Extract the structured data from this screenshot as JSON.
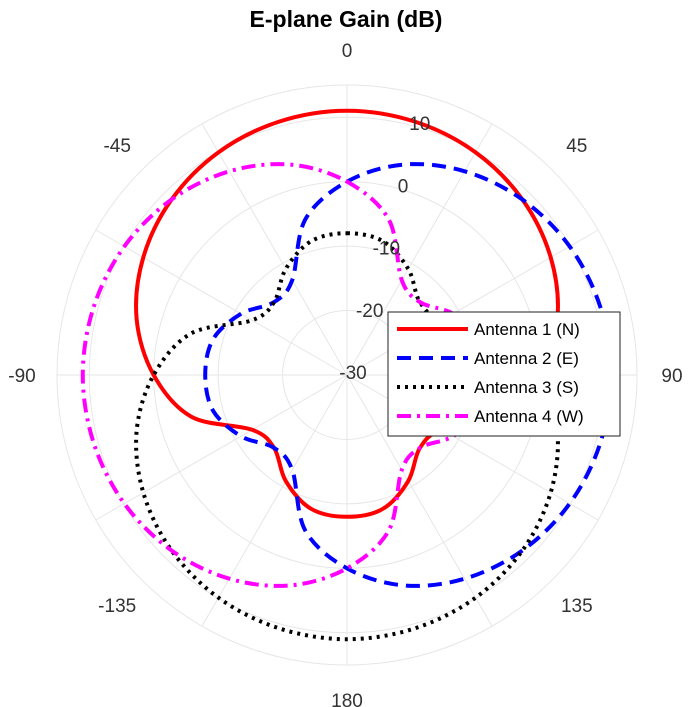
{
  "chart_data": {
    "type": "polar-line",
    "title": "E-plane Gain (dB)",
    "angle_unit": "deg",
    "angle_zero": "top",
    "angle_direction": "clockwise",
    "angle_ticks": [
      0,
      45,
      90,
      135,
      180,
      -135,
      -90,
      -45
    ],
    "r_ticks": [
      -30,
      -20,
      -10,
      0,
      10
    ],
    "rlim": [
      -30,
      15
    ],
    "grid": true,
    "legend": "right",
    "series": [
      {
        "name": "Antenna 1 (N)",
        "color": "#ff0000",
        "style": "solid",
        "theta": [
          0,
          15,
          30,
          45,
          60,
          75,
          90,
          105,
          120,
          135,
          150,
          165,
          180,
          195,
          210,
          225,
          240,
          255,
          270,
          285,
          300,
          315,
          330,
          345
        ],
        "gain": [
          11,
          10.7,
          9.9,
          8.5,
          6.5,
          3.8,
          0.0,
          -5.0,
          -13.0,
          -14.0,
          -11.0,
          -8.5,
          -8.0,
          -8.5,
          -11.0,
          -14.0,
          -13.0,
          -5.0,
          0.0,
          3.8,
          6.5,
          8.5,
          9.9,
          10.7
        ]
      },
      {
        "name": "Antenna 2 (E)",
        "color": "#0000ff",
        "style": "dashed",
        "theta": [
          0,
          15,
          30,
          45,
          60,
          75,
          90,
          105,
          120,
          135,
          150,
          165,
          180,
          195,
          210,
          225,
          240,
          255,
          270,
          285,
          300,
          315,
          330,
          345
        ],
        "gain": [
          0.0,
          3.8,
          6.5,
          8.5,
          9.9,
          10.7,
          11,
          10.7,
          9.9,
          8.5,
          6.5,
          3.8,
          0.0,
          -5.0,
          -13.0,
          -14.0,
          -11.0,
          -8.5,
          -8.0,
          -8.5,
          -11.0,
          -14.0,
          -13.0,
          -5.0
        ]
      },
      {
        "name": "Antenna 3 (S)",
        "color": "#000000",
        "style": "dotted",
        "theta": [
          0,
          15,
          30,
          45,
          60,
          75,
          90,
          105,
          120,
          135,
          150,
          165,
          180,
          195,
          210,
          225,
          240,
          255,
          270,
          285,
          300,
          315,
          330,
          345
        ],
        "gain": [
          -8.0,
          -8.5,
          -11.0,
          -14.0,
          -13.0,
          -5.0,
          0.0,
          3.8,
          6.5,
          8.5,
          9.9,
          10.7,
          11,
          10.7,
          9.9,
          8.5,
          6.5,
          3.8,
          0.0,
          -5.0,
          -13.0,
          -14.0,
          -11.0,
          -8.5
        ]
      },
      {
        "name": "Antenna 4 (W)",
        "color": "#ff00ff",
        "style": "dashdot",
        "theta": [
          0,
          15,
          30,
          45,
          60,
          75,
          90,
          105,
          120,
          135,
          150,
          165,
          180,
          195,
          210,
          225,
          240,
          255,
          270,
          285,
          300,
          315,
          330,
          345
        ],
        "gain": [
          0.0,
          -5.0,
          -13.0,
          -14.0,
          -11.0,
          -8.5,
          -8.0,
          -8.5,
          -11.0,
          -14.0,
          -13.0,
          -5.0,
          0.0,
          3.8,
          6.5,
          8.5,
          9.9,
          10.7,
          11,
          10.7,
          9.9,
          8.5,
          6.5,
          3.8
        ]
      }
    ]
  }
}
